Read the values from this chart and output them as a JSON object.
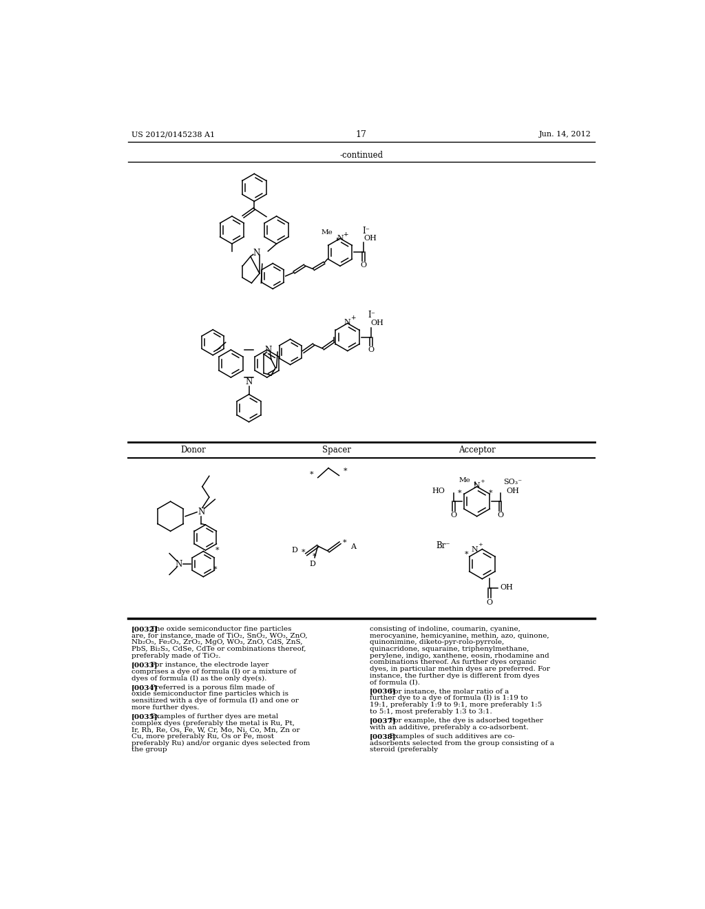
{
  "page_width": 10.24,
  "page_height": 13.2,
  "dpi": 100,
  "bg_color": "#ffffff",
  "header_left": "US 2012/0145238 A1",
  "header_center": "17",
  "header_right": "Jun. 14, 2012",
  "continued_text": "-continued",
  "donor_label": "Donor",
  "spacer_label": "Spacer",
  "acceptor_label": "Acceptor",
  "para_left": [
    [
      "[0032]",
      "   The oxide semiconductor fine particles are, for instance, made of TiO₂, SnO₂, WO₃, ZnO, Nb₂O₅, Fe₂O₃, ZrO₂, MgO, WO₃, ZnO, CdS, ZnS, PbS, Bi₂S₃, CdSe, CdTe or combinations thereof, preferably made of TiO₂."
    ],
    [
      "[0033]",
      "   For instance, the electrode layer comprises a dye of formula (I) or a mixture of dyes of formula (I) as the only dye(s)."
    ],
    [
      "[0034]",
      "   Preferred is a porous film made of oxide semiconductor fine particles which is sensitized with a dye of formula (I) and one or more further dyes."
    ],
    [
      "[0035]",
      "   Examples of further dyes are metal complex dyes (preferably the metal is Ru, Pt, Ir, Rh, Re, Os, Fe, W, Cr, Mo, Ni, Co, Mn, Zn or Cu, more preferably Ru, Os or Fe, most preferably Ru) and/or organic dyes selected from the group"
    ]
  ],
  "para_right": [
    [
      "",
      "consisting of indoline, coumarin, cyanine, merocyanine, hemicyanine, methin, azo, quinone, quinonimine, diketo-pyrrolo-pyrrole, quinacridone, squaraine, triphenylmethane, perylene, indigo, xanthene, eosin, rhodamine and combinations thereof. As further dyes organic dyes, in particular methin dyes are preferred. For instance, the further dye is different from dyes of formula (I)."
    ],
    [
      "[0036]",
      "   For instance, the molar ratio of a further dye to a dye of formula (I) is 1:19 to 19:1, preferably 1:9 to 9:1, more preferably 1:5 to 5:1, most preferably 1:3 to 3:1."
    ],
    [
      "[0037]",
      "   For example, the dye is adsorbed together with an additive, preferably a co-adsorbent."
    ],
    [
      "[0038]",
      "   Examples of such additives are co-adsorbents selected from the group consisting of a steroid (preferably"
    ]
  ]
}
